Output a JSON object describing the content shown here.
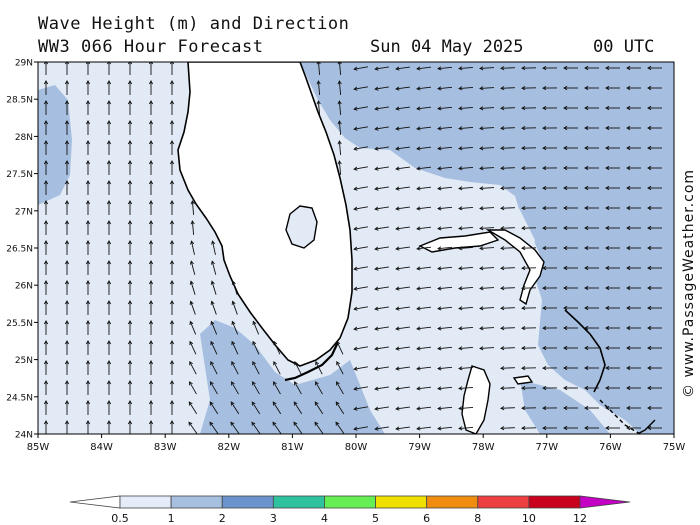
{
  "title": {
    "line1": "Wave Height (m) and Direction",
    "line2": "WW3 066 Hour Forecast",
    "date": "Sun 04 May 2025",
    "time": "00 UTC"
  },
  "credit": "© www.PassageWeather.com",
  "map": {
    "lon_labels": [
      "85W",
      "84W",
      "83W",
      "82W",
      "81W",
      "80W",
      "79W",
      "78W",
      "77W",
      "76W",
      "75W"
    ],
    "lat_labels": [
      "29N",
      "28.5N",
      "28N",
      "27.5N",
      "27N",
      "26.5N",
      "26N",
      "25.5N",
      "25N",
      "24.5N",
      "24N"
    ]
  },
  "legend": {
    "ticks": [
      "0.5",
      "1",
      "2",
      "3",
      "4",
      "5",
      "6",
      "8",
      "10",
      "12"
    ],
    "colors": [
      "#e3ecf8",
      "#a8c0e0",
      "#6c94cc",
      "#2ec39e",
      "#66ee55",
      "#f0e000",
      "#f08c10",
      "#ec4040",
      "#c8001e",
      "#c400c4"
    ]
  },
  "colors": {
    "land": "#ffffff",
    "sea_low": "#e2eaf6",
    "sea_mid": "#a6bfe0"
  }
}
